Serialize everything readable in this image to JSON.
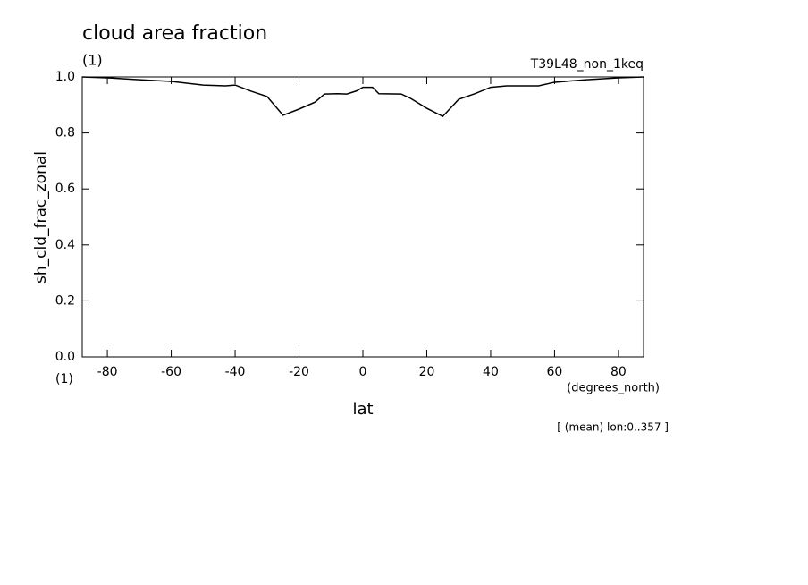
{
  "chart_data": {
    "type": "line",
    "title": "cloud area fraction",
    "title_units": "(1)",
    "dataset": "T39L48_non_1keq",
    "ylabel": "sh_cld_frac_zonal",
    "y_units": "(1)",
    "xlabel": "lat",
    "x_units": "(degrees_north)",
    "note": "[ (mean) lon:0..357 ]",
    "x": [
      -87.86,
      -80,
      -70,
      -60,
      -50,
      -43,
      -40,
      -35,
      -30,
      -25,
      -20,
      -15,
      -12,
      -8,
      -5,
      -2,
      0,
      3,
      5,
      12,
      15,
      20,
      25,
      30,
      35,
      40,
      45,
      55,
      60,
      70,
      80,
      87.86
    ],
    "series": [
      {
        "name": "sh_cld_frac_zonal",
        "color": "#000000",
        "values": [
          1.0,
          0.997,
          0.99,
          0.984,
          0.971,
          0.968,
          0.971,
          0.949,
          0.93,
          0.863,
          0.885,
          0.91,
          0.939,
          0.94,
          0.939,
          0.95,
          0.963,
          0.963,
          0.94,
          0.939,
          0.923,
          0.888,
          0.859,
          0.92,
          0.94,
          0.963,
          0.968,
          0.968,
          0.981,
          0.99,
          0.997,
          1.0
        ]
      }
    ],
    "xlim": [
      -87.86,
      87.86
    ],
    "ylim": [
      0,
      1
    ],
    "xticks": [
      -80,
      -60,
      -40,
      -20,
      0,
      20,
      40,
      60,
      80
    ],
    "yticks": [
      {
        "value": 0,
        "label": "0.0"
      },
      0.2,
      0.4,
      0.6,
      0.8,
      {
        "value": 1,
        "label": "1.0"
      }
    ],
    "grid": false
  }
}
